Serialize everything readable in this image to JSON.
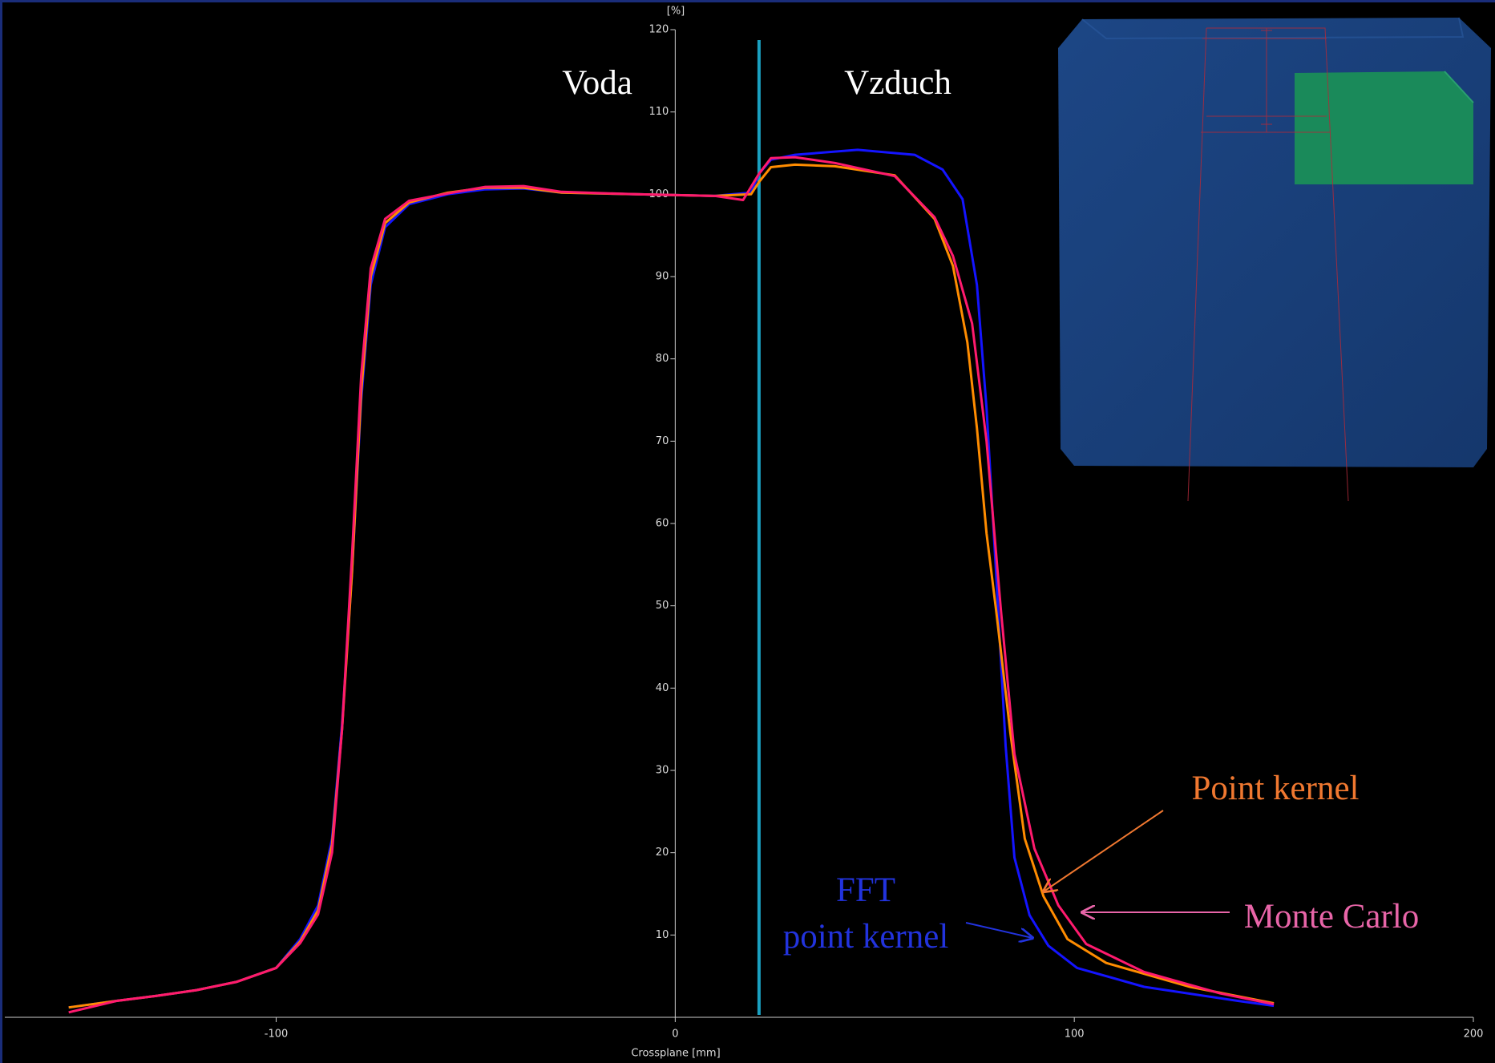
{
  "chart_data": {
    "type": "line",
    "y_axis_label": "[%]",
    "x_axis_label": "Crossplane [mm]",
    "xlim": [
      -168,
      200
    ],
    "xticks": [
      -100,
      0,
      100,
      200
    ],
    "ylim": [
      0,
      120
    ],
    "yticks": [
      10,
      20,
      30,
      40,
      50,
      60,
      70,
      80,
      90,
      100,
      110,
      120
    ],
    "grid": false,
    "boundary_x": 21,
    "boundary_color": "#1aa0c0",
    "regions": [
      "Voda",
      "Vzduch"
    ],
    "annotations": [
      {
        "lines": [
          "Point kernel"
        ],
        "color": "#f07830"
      },
      {
        "lines": [
          "Monte Carlo"
        ],
        "color": "#e865a8"
      },
      {
        "lines": [
          "FFT",
          "point kernel"
        ],
        "color": "#2233dd"
      }
    ],
    "series": [
      {
        "color": "#1414ff",
        "x": [
          -152,
          -140,
          -130,
          -120,
          -110,
          -100,
          -94,
          -89.5,
          -86,
          -83.5,
          -81,
          -78.7,
          -76.3,
          -72.7,
          -66.7,
          -57,
          -47.6,
          -38,
          -28.5,
          -10,
          10,
          19,
          21,
          24,
          30,
          45.7,
          60,
          67,
          72,
          75.6,
          78,
          80.4,
          82.8,
          85,
          88.8,
          93.5,
          100.7,
          117.5,
          141,
          150
        ],
        "values": [
          1.2,
          2.0,
          2.6,
          3.3,
          4.3,
          6.0,
          9.5,
          13.6,
          21.7,
          35.6,
          54,
          75,
          89,
          96,
          98.8,
          100,
          100.6,
          100.7,
          100.2,
          100,
          99.8,
          100.2,
          102.5,
          104.2,
          104.8,
          105.4,
          104.8,
          103,
          99.4,
          89,
          74,
          54,
          33,
          19.4,
          12.4,
          8.7,
          6,
          3.7,
          2,
          1.4
        ]
      },
      {
        "color": "#ff8c00",
        "x": [
          -152,
          -140,
          -130,
          -120,
          -110,
          -100,
          -94,
          -89.5,
          -86,
          -83.5,
          -81,
          -78.7,
          -76.3,
          -72.7,
          -66.7,
          -57,
          -47.6,
          -38,
          -28.5,
          -10,
          10,
          19,
          21,
          24,
          30,
          40,
          55,
          65,
          69.6,
          73.2,
          75.6,
          78,
          80.4,
          84,
          87.6,
          92.3,
          98.3,
          108,
          129,
          150
        ],
        "values": [
          1.2,
          2.0,
          2.6,
          3.3,
          4.3,
          6.0,
          9.2,
          13,
          21,
          35,
          54,
          76,
          90,
          96.5,
          99,
          100.2,
          100.8,
          100.8,
          100.2,
          100,
          99.8,
          100,
          101.5,
          103.3,
          103.6,
          103.4,
          102.3,
          97,
          91.3,
          82,
          71.6,
          58.8,
          49.5,
          34.5,
          21.7,
          14.7,
          9.5,
          6.6,
          3.7,
          1.7
        ]
      },
      {
        "color": "#ff1a6e",
        "x": [
          -152,
          -140,
          -130,
          -120,
          -110,
          -100,
          -94,
          -89.5,
          -86,
          -83.5,
          -81,
          -78.7,
          -76.3,
          -72.7,
          -66.7,
          -57,
          -47.6,
          -38,
          -28.5,
          -10,
          10,
          17,
          21,
          24,
          30,
          40,
          55,
          65,
          69.6,
          74.4,
          78,
          81.6,
          85,
          90,
          96,
          103,
          117.5,
          136.6,
          150
        ],
        "values": [
          0.6,
          2.0,
          2.6,
          3.3,
          4.3,
          6.0,
          9,
          12.5,
          20,
          35,
          56,
          78,
          91,
          97,
          99.2,
          100.1,
          100.9,
          101,
          100.3,
          100,
          99.8,
          99.3,
          102.5,
          104.4,
          104.5,
          103.8,
          102.2,
          97.2,
          92.5,
          84.3,
          70,
          49.5,
          32,
          20.5,
          13.6,
          8.9,
          5.5,
          2.9,
          1.6
        ]
      }
    ]
  }
}
